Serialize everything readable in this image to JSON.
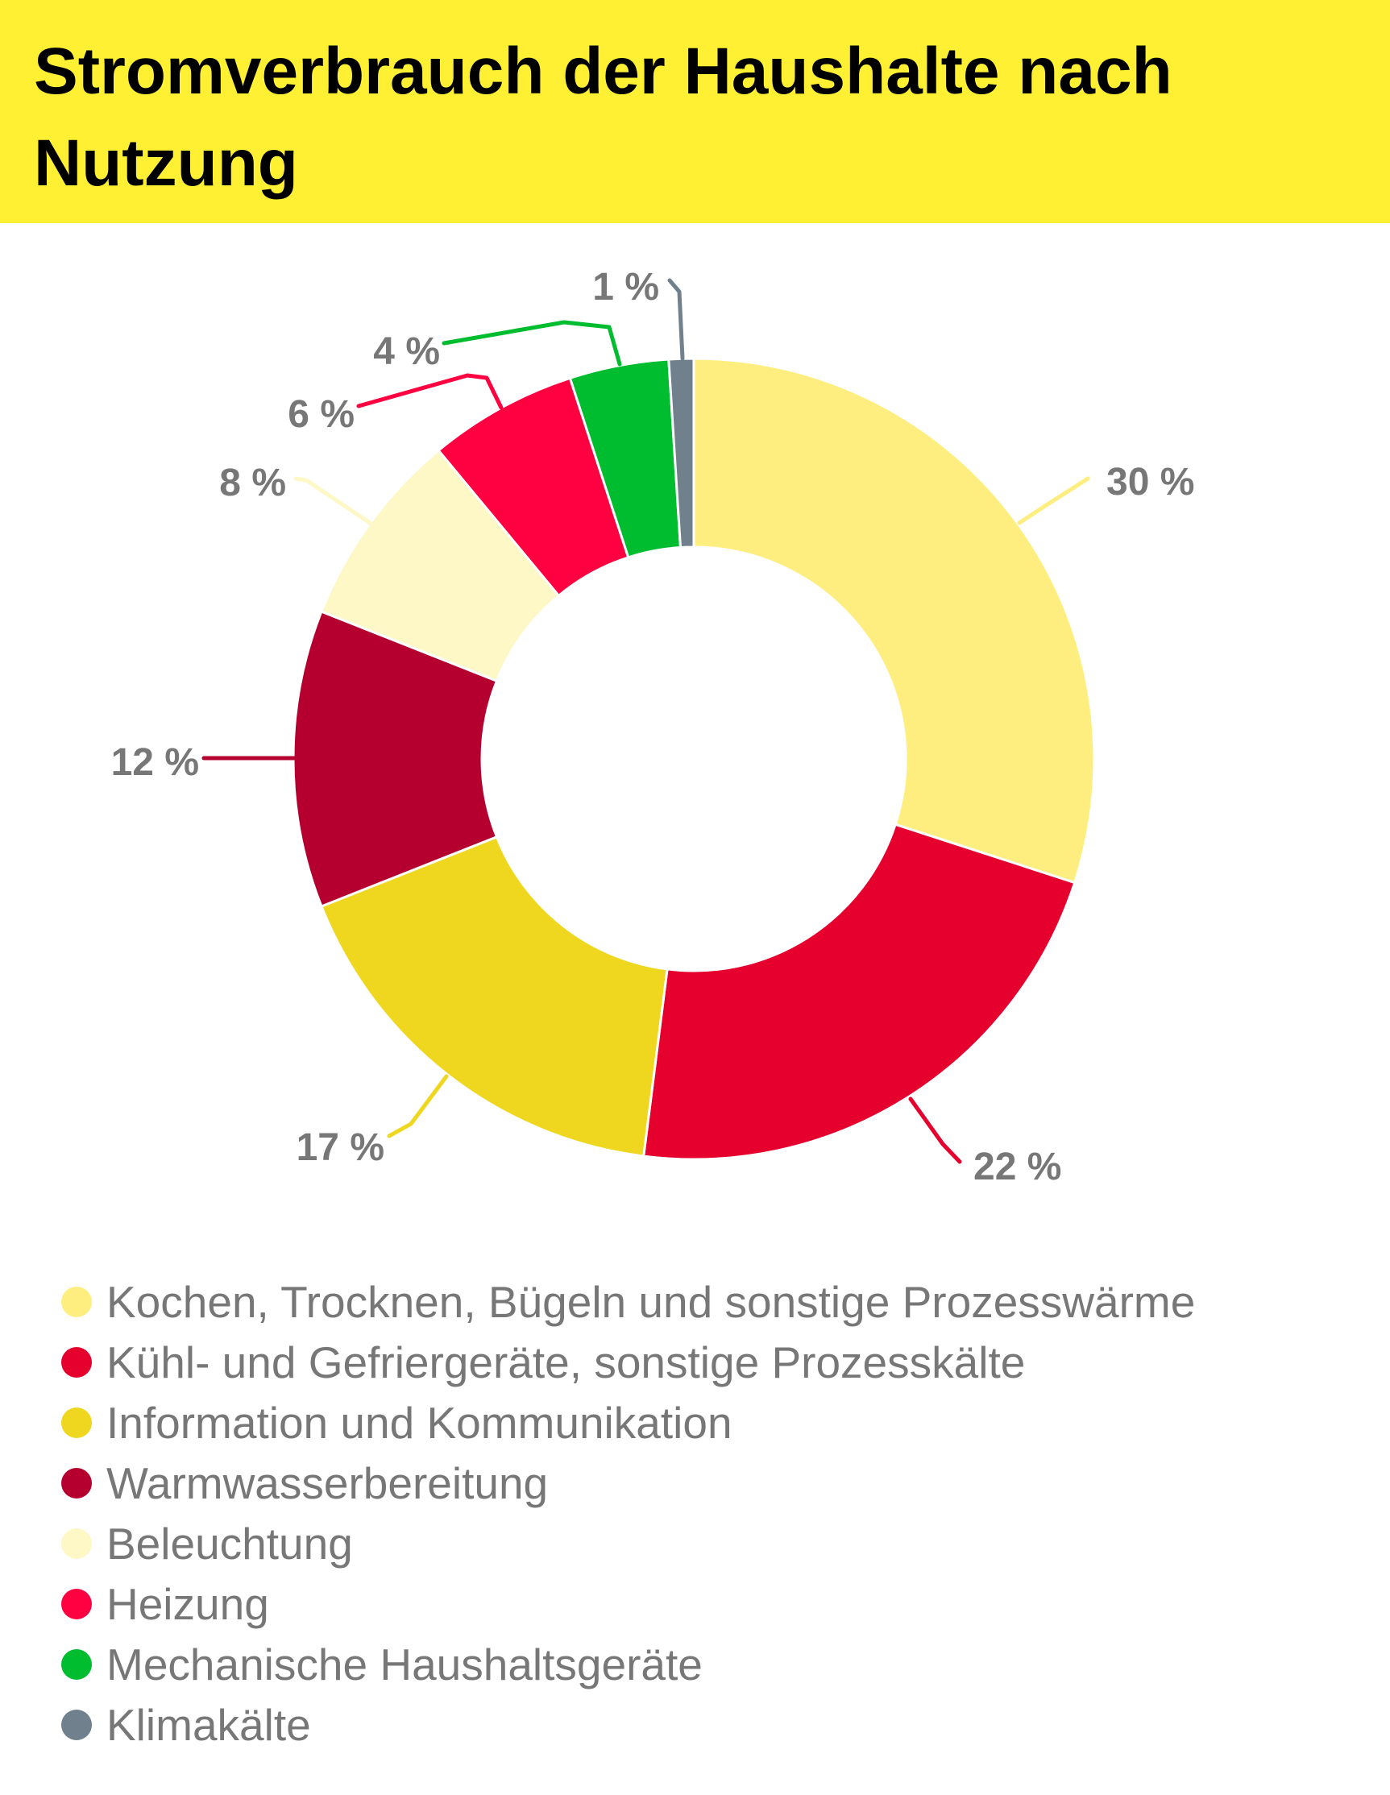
{
  "header": {
    "title": "Stromverbrauch der Haushalte nach Nutzung"
  },
  "chart_data": {
    "type": "pie",
    "variant": "donut",
    "title": "Stromverbrauch der Haushalte nach Nutzung",
    "unit": "%",
    "legend_position": "bottom",
    "slices": [
      {
        "label": "Kochen, Trocknen, Bügeln und sonstige Prozesswärme",
        "value": 30,
        "display": "30 %",
        "color": "#FEEE80"
      },
      {
        "label": "Kühl- und Gefriergeräte, sonstige Prozesskälte",
        "value": 22,
        "display": "22 %",
        "color": "#E5002E"
      },
      {
        "label": "Information und Kommunikation",
        "value": 17,
        "display": "17 %",
        "color": "#EFD71F"
      },
      {
        "label": "Warmwasserbereitung",
        "value": 12,
        "display": "12 %",
        "color": "#B5002F"
      },
      {
        "label": "Beleuchtung",
        "value": 8,
        "display": "8 %",
        "color": "#FEF8C6"
      },
      {
        "label": "Heizung",
        "value": 6,
        "display": "6 %",
        "color": "#FF0040"
      },
      {
        "label": "Mechanische Haushaltsgeräte",
        "value": 4,
        "display": "4 %",
        "color": "#00BC2F"
      },
      {
        "label": "Klimakälte",
        "value": 1,
        "display": "1 %",
        "color": "#70808C"
      }
    ]
  }
}
